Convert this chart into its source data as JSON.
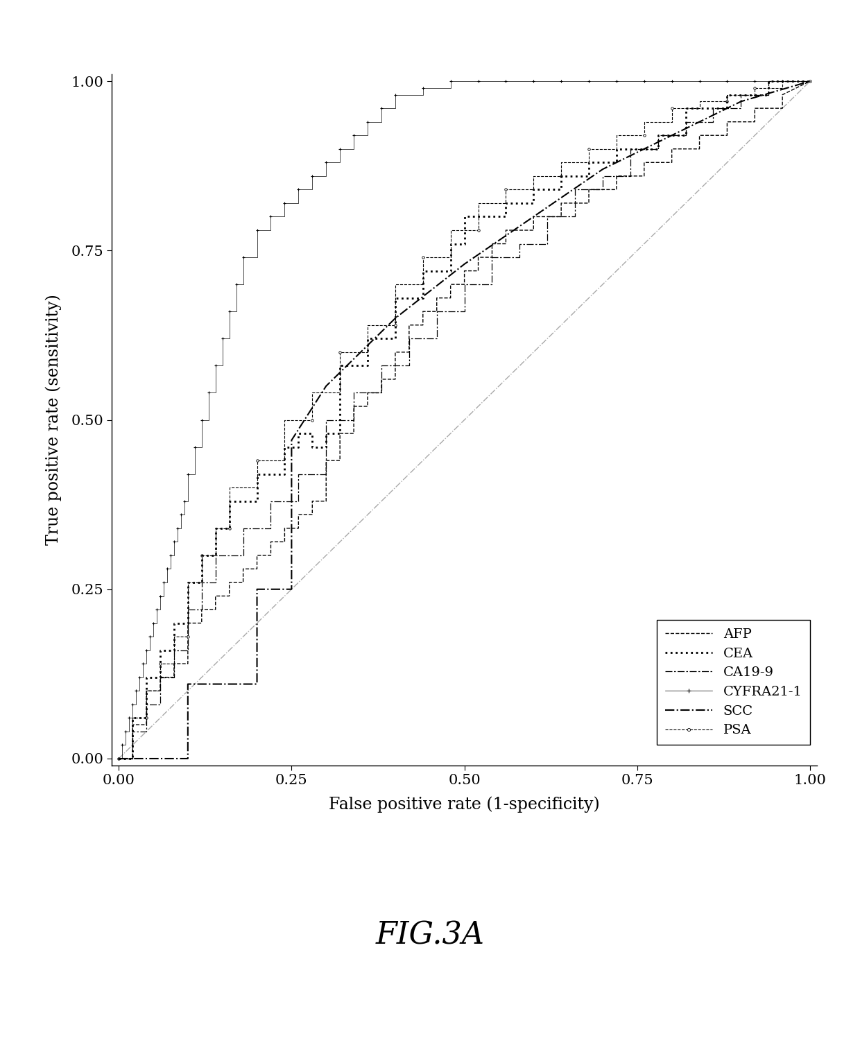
{
  "title": "FIG.3A",
  "xlabel": "False positive rate (1-specificity)",
  "ylabel": "True positive rate (sensitivity)",
  "xticks": [
    0.0,
    0.25,
    0.5,
    0.75,
    1.0
  ],
  "yticks": [
    0.0,
    0.25,
    0.5,
    0.75,
    1.0
  ],
  "xticklabels": [
    "0.00",
    "0.25",
    "0.50",
    "0.75",
    "1.00"
  ],
  "yticklabels": [
    "0.00",
    "0.25",
    "0.50",
    "0.75",
    "1.00"
  ],
  "AFP": {
    "x": [
      0.0,
      0.02,
      0.02,
      0.04,
      0.04,
      0.06,
      0.06,
      0.08,
      0.08,
      0.1,
      0.1,
      0.12,
      0.12,
      0.14,
      0.14,
      0.16,
      0.16,
      0.18,
      0.18,
      0.2,
      0.2,
      0.22,
      0.22,
      0.24,
      0.24,
      0.26,
      0.26,
      0.28,
      0.28,
      0.3,
      0.3,
      0.32,
      0.32,
      0.34,
      0.34,
      0.36,
      0.36,
      0.38,
      0.38,
      0.4,
      0.4,
      0.42,
      0.42,
      0.44,
      0.44,
      0.46,
      0.46,
      0.48,
      0.48,
      0.5,
      0.5,
      0.52,
      0.52,
      0.54,
      0.54,
      0.56,
      0.56,
      0.6,
      0.6,
      0.64,
      0.64,
      0.68,
      0.68,
      0.72,
      0.72,
      0.76,
      0.76,
      0.8,
      0.8,
      0.84,
      0.84,
      0.88,
      0.88,
      0.92,
      0.92,
      0.96,
      0.96,
      1.0
    ],
    "y": [
      0.0,
      0.0,
      0.05,
      0.05,
      0.1,
      0.1,
      0.12,
      0.12,
      0.14,
      0.14,
      0.2,
      0.2,
      0.22,
      0.22,
      0.24,
      0.24,
      0.26,
      0.26,
      0.28,
      0.28,
      0.3,
      0.3,
      0.32,
      0.32,
      0.34,
      0.34,
      0.36,
      0.36,
      0.38,
      0.38,
      0.44,
      0.44,
      0.48,
      0.48,
      0.52,
      0.52,
      0.54,
      0.54,
      0.56,
      0.56,
      0.6,
      0.6,
      0.64,
      0.64,
      0.66,
      0.66,
      0.68,
      0.68,
      0.7,
      0.7,
      0.72,
      0.72,
      0.74,
      0.74,
      0.76,
      0.76,
      0.78,
      0.78,
      0.8,
      0.8,
      0.82,
      0.82,
      0.84,
      0.84,
      0.86,
      0.86,
      0.88,
      0.88,
      0.9,
      0.9,
      0.92,
      0.92,
      0.94,
      0.94,
      0.96,
      0.96,
      0.98,
      1.0
    ]
  },
  "CEA": {
    "x": [
      0.0,
      0.02,
      0.02,
      0.04,
      0.04,
      0.06,
      0.06,
      0.08,
      0.08,
      0.1,
      0.1,
      0.12,
      0.12,
      0.14,
      0.14,
      0.16,
      0.16,
      0.2,
      0.2,
      0.24,
      0.24,
      0.26,
      0.26,
      0.28,
      0.28,
      0.3,
      0.3,
      0.32,
      0.32,
      0.36,
      0.36,
      0.4,
      0.4,
      0.44,
      0.44,
      0.48,
      0.48,
      0.5,
      0.5,
      0.56,
      0.56,
      0.6,
      0.6,
      0.64,
      0.64,
      0.68,
      0.68,
      0.72,
      0.72,
      0.78,
      0.78,
      0.82,
      0.82,
      0.88,
      0.88,
      0.94,
      0.94,
      1.0
    ],
    "y": [
      0.0,
      0.0,
      0.06,
      0.06,
      0.12,
      0.12,
      0.16,
      0.16,
      0.2,
      0.2,
      0.26,
      0.26,
      0.3,
      0.3,
      0.34,
      0.34,
      0.38,
      0.38,
      0.42,
      0.42,
      0.46,
      0.46,
      0.48,
      0.48,
      0.46,
      0.46,
      0.48,
      0.48,
      0.58,
      0.58,
      0.62,
      0.62,
      0.68,
      0.68,
      0.72,
      0.72,
      0.76,
      0.76,
      0.8,
      0.8,
      0.82,
      0.82,
      0.84,
      0.84,
      0.86,
      0.86,
      0.88,
      0.88,
      0.9,
      0.9,
      0.92,
      0.92,
      0.96,
      0.96,
      0.98,
      0.98,
      1.0,
      1.0
    ]
  },
  "CA19-9": {
    "x": [
      0.0,
      0.02,
      0.02,
      0.04,
      0.04,
      0.06,
      0.06,
      0.08,
      0.08,
      0.1,
      0.1,
      0.12,
      0.12,
      0.14,
      0.14,
      0.18,
      0.18,
      0.22,
      0.22,
      0.26,
      0.26,
      0.3,
      0.3,
      0.34,
      0.34,
      0.38,
      0.38,
      0.42,
      0.42,
      0.46,
      0.46,
      0.5,
      0.5,
      0.54,
      0.54,
      0.58,
      0.58,
      0.62,
      0.62,
      0.66,
      0.66,
      0.7,
      0.7,
      0.74,
      0.74,
      0.78,
      0.78,
      0.82,
      0.82,
      0.86,
      0.86,
      0.9,
      0.9,
      0.94,
      0.94,
      1.0
    ],
    "y": [
      0.0,
      0.0,
      0.04,
      0.04,
      0.08,
      0.08,
      0.12,
      0.12,
      0.16,
      0.16,
      0.22,
      0.22,
      0.26,
      0.26,
      0.3,
      0.3,
      0.34,
      0.34,
      0.38,
      0.38,
      0.42,
      0.42,
      0.5,
      0.5,
      0.54,
      0.54,
      0.58,
      0.58,
      0.62,
      0.62,
      0.66,
      0.66,
      0.7,
      0.7,
      0.74,
      0.74,
      0.76,
      0.76,
      0.8,
      0.8,
      0.84,
      0.84,
      0.86,
      0.86,
      0.9,
      0.9,
      0.92,
      0.92,
      0.94,
      0.94,
      0.96,
      0.96,
      0.98,
      0.98,
      1.0,
      1.0
    ]
  },
  "CYFRA21-1": {
    "x": [
      0.0,
      0.005,
      0.005,
      0.01,
      0.01,
      0.015,
      0.015,
      0.02,
      0.02,
      0.025,
      0.025,
      0.03,
      0.03,
      0.035,
      0.035,
      0.04,
      0.04,
      0.045,
      0.045,
      0.05,
      0.05,
      0.055,
      0.055,
      0.06,
      0.06,
      0.065,
      0.065,
      0.07,
      0.07,
      0.075,
      0.075,
      0.08,
      0.08,
      0.085,
      0.085,
      0.09,
      0.09,
      0.095,
      0.095,
      0.1,
      0.1,
      0.11,
      0.11,
      0.12,
      0.12,
      0.13,
      0.13,
      0.14,
      0.14,
      0.15,
      0.15,
      0.16,
      0.16,
      0.17,
      0.17,
      0.18,
      0.18,
      0.2,
      0.2,
      0.22,
      0.22,
      0.24,
      0.24,
      0.26,
      0.26,
      0.28,
      0.28,
      0.3,
      0.3,
      0.32,
      0.32,
      0.34,
      0.34,
      0.36,
      0.36,
      0.38,
      0.38,
      0.4,
      0.4,
      0.44,
      0.44,
      0.48,
      0.48,
      0.52,
      0.52,
      0.56,
      0.56,
      0.6,
      0.6,
      0.64,
      0.64,
      0.68,
      0.68,
      0.72,
      0.72,
      0.76,
      0.76,
      0.8,
      0.8,
      0.84,
      0.84,
      0.88,
      0.88,
      0.92,
      0.92,
      0.96,
      0.96,
      1.0
    ],
    "y": [
      0.0,
      0.0,
      0.02,
      0.02,
      0.04,
      0.04,
      0.06,
      0.06,
      0.08,
      0.08,
      0.1,
      0.1,
      0.12,
      0.12,
      0.14,
      0.14,
      0.16,
      0.16,
      0.18,
      0.18,
      0.2,
      0.2,
      0.22,
      0.22,
      0.24,
      0.24,
      0.26,
      0.26,
      0.28,
      0.28,
      0.3,
      0.3,
      0.32,
      0.32,
      0.34,
      0.34,
      0.36,
      0.36,
      0.38,
      0.38,
      0.42,
      0.42,
      0.46,
      0.46,
      0.5,
      0.5,
      0.54,
      0.54,
      0.58,
      0.58,
      0.62,
      0.62,
      0.66,
      0.66,
      0.7,
      0.7,
      0.74,
      0.74,
      0.78,
      0.78,
      0.8,
      0.8,
      0.82,
      0.82,
      0.84,
      0.84,
      0.86,
      0.86,
      0.88,
      0.88,
      0.9,
      0.9,
      0.92,
      0.92,
      0.94,
      0.94,
      0.96,
      0.96,
      0.98,
      0.98,
      0.99,
      0.99,
      1.0,
      1.0,
      1.0,
      1.0,
      1.0,
      1.0,
      1.0,
      1.0,
      1.0,
      1.0,
      1.0,
      1.0,
      1.0,
      1.0,
      1.0,
      1.0,
      1.0,
      1.0,
      1.0,
      1.0,
      1.0,
      1.0,
      1.0,
      1.0,
      1.0,
      1.0
    ]
  },
  "SCC": {
    "x": [
      0.0,
      0.0,
      0.1,
      0.1,
      0.2,
      0.2,
      0.25,
      0.25,
      0.3,
      0.4,
      0.5,
      0.6,
      0.7,
      0.8,
      0.9,
      1.0
    ],
    "y": [
      0.0,
      0.0,
      0.0,
      0.11,
      0.11,
      0.25,
      0.25,
      0.47,
      0.55,
      0.65,
      0.73,
      0.8,
      0.87,
      0.92,
      0.97,
      1.0
    ]
  },
  "PSA": {
    "x": [
      0.0,
      0.02,
      0.02,
      0.04,
      0.04,
      0.06,
      0.06,
      0.08,
      0.08,
      0.1,
      0.1,
      0.12,
      0.12,
      0.14,
      0.14,
      0.16,
      0.16,
      0.2,
      0.2,
      0.24,
      0.24,
      0.28,
      0.28,
      0.32,
      0.32,
      0.36,
      0.36,
      0.4,
      0.4,
      0.44,
      0.44,
      0.48,
      0.48,
      0.52,
      0.52,
      0.56,
      0.56,
      0.6,
      0.6,
      0.64,
      0.64,
      0.68,
      0.68,
      0.72,
      0.72,
      0.76,
      0.76,
      0.8,
      0.8,
      0.84,
      0.84,
      0.88,
      0.88,
      0.92,
      0.92,
      0.96,
      0.96,
      1.0
    ],
    "y": [
      0.0,
      0.0,
      0.06,
      0.06,
      0.1,
      0.1,
      0.14,
      0.14,
      0.18,
      0.18,
      0.26,
      0.26,
      0.3,
      0.3,
      0.34,
      0.34,
      0.4,
      0.4,
      0.44,
      0.44,
      0.5,
      0.5,
      0.54,
      0.54,
      0.6,
      0.6,
      0.64,
      0.64,
      0.7,
      0.7,
      0.74,
      0.74,
      0.78,
      0.78,
      0.82,
      0.82,
      0.84,
      0.84,
      0.86,
      0.86,
      0.88,
      0.88,
      0.9,
      0.9,
      0.92,
      0.92,
      0.94,
      0.94,
      0.96,
      0.96,
      0.97,
      0.97,
      0.98,
      0.98,
      0.99,
      0.99,
      1.0,
      1.0
    ]
  },
  "background_color": "#ffffff",
  "fig_title": "FIG.3A",
  "fig_title_fontsize": 32,
  "figwidth": 12.4,
  "figheight": 15.33,
  "dpi": 100
}
